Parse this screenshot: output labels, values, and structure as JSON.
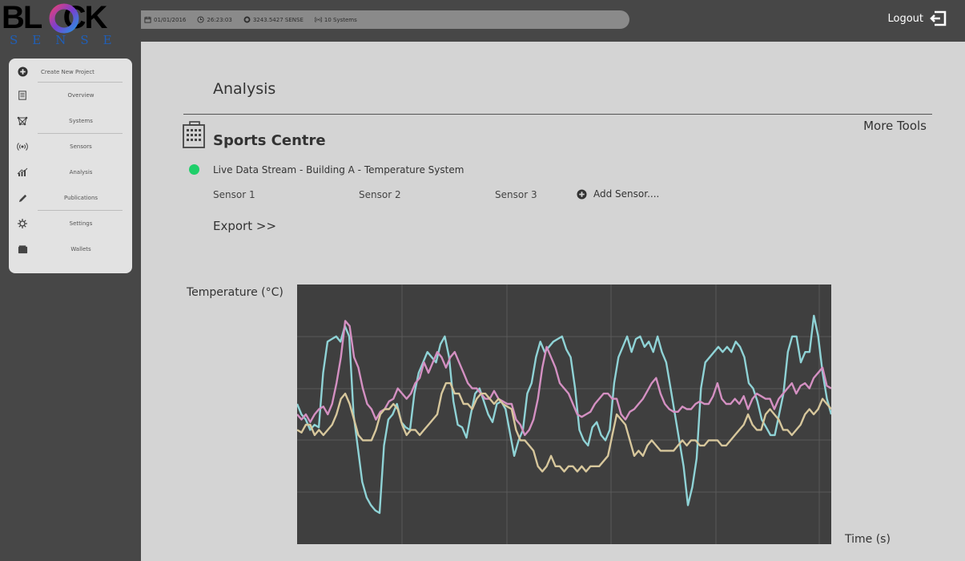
{
  "brand": {
    "logo_word": "BL  CK",
    "logo_sub": "SENSE"
  },
  "topbar": {
    "date": "01/01/2016",
    "time": "26:23:03",
    "balance": "3243.5427 SENSE",
    "systems": "10 Systems",
    "logout_label": "Logout"
  },
  "nav": {
    "items": [
      {
        "label": "Create New Project",
        "icon": "plus-circle-icon"
      },
      {
        "label": "Overview",
        "icon": "document-icon"
      },
      {
        "label": "Systems",
        "icon": "network-icon"
      },
      {
        "label": "Sensors",
        "icon": "broadcast-icon"
      },
      {
        "label": "Analysis",
        "icon": "chart-icon"
      },
      {
        "label": "Publications",
        "icon": "pen-icon"
      },
      {
        "label": "Settings",
        "icon": "gear-icon"
      },
      {
        "label": "Wallets",
        "icon": "wallet-icon"
      }
    ]
  },
  "main": {
    "title": "Analysis",
    "more_tools": "More Tools",
    "project_name": "Sports Centre",
    "stream_label": "Live Data Stream - Building A - Temperature System",
    "sensors": [
      "Sensor 1",
      "Sensor 2",
      "Sensor 3"
    ],
    "add_sensor": "Add Sensor....",
    "export": "Export >>"
  },
  "chart_data": {
    "type": "line",
    "ylabel": "Temperature (°C)",
    "xlabel": "Time (s)",
    "grid": true,
    "colors": {
      "background": "#3f3f3f",
      "grid": "#5a5a5a"
    },
    "ylim": [
      0,
      100
    ],
    "series": [
      {
        "color": "#8fd3d6",
        "values": [
          54,
          50,
          48,
          44,
          46,
          45,
          66,
          78,
          79,
          80,
          78,
          84,
          80,
          50,
          37,
          24,
          18,
          15,
          13,
          12,
          38,
          48,
          50,
          54,
          47,
          45,
          44,
          58,
          66,
          70,
          74,
          72,
          70,
          77,
          80,
          72,
          55,
          46,
          45,
          41,
          50,
          58,
          60,
          55,
          50,
          47,
          54,
          55,
          52,
          43,
          34,
          40,
          44,
          58,
          62,
          72,
          78,
          74,
          76,
          78,
          79,
          80,
          75,
          72,
          60,
          44,
          40,
          38,
          45,
          47,
          42,
          40,
          44,
          62,
          72,
          76,
          80,
          74,
          79,
          80,
          76,
          78,
          74,
          80,
          74,
          70,
          60,
          50,
          40,
          30,
          15,
          22,
          33,
          60,
          70,
          72,
          74,
          76,
          74,
          76,
          74,
          78,
          76,
          72,
          62,
          60,
          55,
          48,
          45,
          42,
          42,
          50,
          58,
          74,
          80,
          80,
          70,
          74,
          74,
          88,
          80,
          66,
          56,
          50
        ]
      },
      {
        "color": "#d490c2",
        "values": [
          50,
          48,
          50,
          47,
          50,
          52,
          53,
          50,
          54,
          62,
          72,
          86,
          84,
          72,
          68,
          60,
          54,
          52,
          48,
          51,
          52,
          55,
          56,
          60,
          58,
          56,
          58,
          62,
          64,
          70,
          66,
          70,
          74,
          72,
          68,
          72,
          74,
          70,
          66,
          62,
          60,
          60,
          58,
          56,
          56,
          59,
          56,
          55,
          54,
          54,
          48,
          46,
          42,
          44,
          48,
          56,
          68,
          76,
          72,
          68,
          62,
          60,
          58,
          54,
          50,
          49,
          50,
          51,
          54,
          56,
          58,
          58,
          56,
          56,
          50,
          48,
          51,
          52,
          54,
          56,
          59,
          62,
          64,
          58,
          54,
          52,
          51,
          51,
          53,
          52,
          52,
          54,
          55,
          54,
          54,
          57,
          62,
          56,
          54,
          54,
          56,
          54,
          57,
          52,
          56,
          58,
          57,
          56,
          56,
          52,
          56,
          58,
          60,
          62,
          58,
          61,
          62,
          60,
          64,
          66,
          68,
          61,
          60
        ]
      },
      {
        "color": "#d7c79c",
        "values": [
          44,
          43,
          46,
          46,
          42,
          44,
          42,
          44,
          46,
          50,
          56,
          58,
          54,
          48,
          42,
          40,
          40,
          40,
          44,
          50,
          52,
          52,
          54,
          52,
          46,
          42,
          44,
          44,
          42,
          44,
          46,
          48,
          50,
          58,
          62,
          62,
          58,
          58,
          54,
          54,
          52,
          56,
          58,
          58,
          56,
          54,
          56,
          54,
          53,
          52,
          44,
          40,
          40,
          38,
          36,
          30,
          28,
          30,
          34,
          30,
          30,
          28,
          30,
          30,
          28,
          30,
          28,
          30,
          30,
          30,
          32,
          34,
          42,
          50,
          48,
          46,
          40,
          34,
          36,
          34,
          38,
          40,
          38,
          36,
          36,
          36,
          36,
          38,
          40,
          38,
          40,
          40,
          38,
          38,
          40,
          40,
          40,
          38,
          38,
          40,
          42,
          44,
          46,
          50,
          46,
          44,
          44,
          50,
          52,
          50,
          48,
          44,
          44,
          42,
          44,
          46,
          50,
          52,
          50,
          52,
          56,
          54,
          52
        ]
      }
    ]
  }
}
